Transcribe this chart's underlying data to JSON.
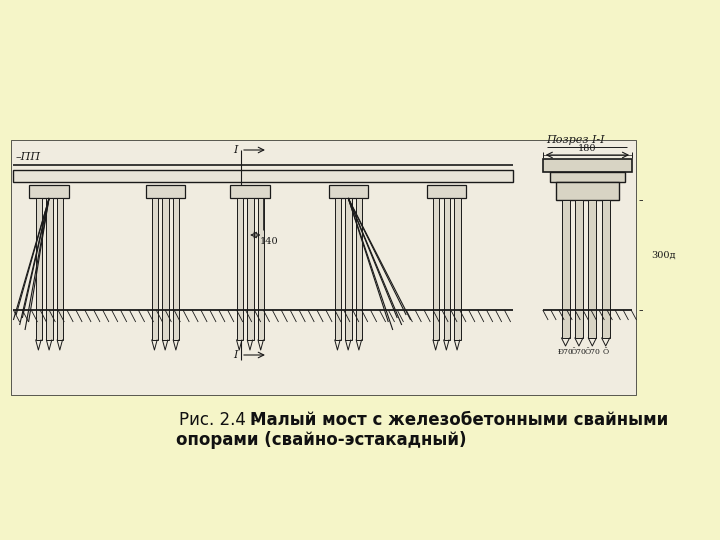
{
  "bg_color": "#f5f5c8",
  "paper_color": "#f0ece0",
  "line_color": "#1a1a1a",
  "title_prefix": "Рис. 2.4 – ",
  "title_bold1": "Малый мост с железобетонными свайными",
  "title_bold2": "опорами (свайно-эстакадный)",
  "label_pp": "–ПП",
  "label_razrez": "Позрез I-I",
  "label_I_top": "I",
  "label_I_bot": "I",
  "label_140": "140",
  "label_180": "180",
  "label_300": "300д",
  "label_70a": "Ð70",
  "label_70b": "Ô70",
  "label_70c": "Ô70",
  "label_70d": "Ô"
}
